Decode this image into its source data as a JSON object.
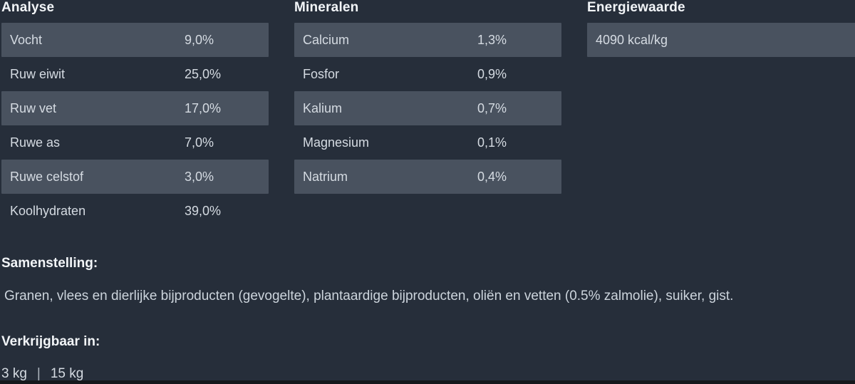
{
  "colors": {
    "background": "#262e3a",
    "row_highlight": "#49525f",
    "heading_text": "#f2f5f8",
    "body_text": "#d5dbe2",
    "bottom_bar": "#15181c"
  },
  "sections": {
    "analyse": {
      "title": "Analyse",
      "rows": [
        {
          "label": "Vocht",
          "value": "9,0%"
        },
        {
          "label": "Ruw eiwit",
          "value": "25,0%"
        },
        {
          "label": "Ruw vet",
          "value": "17,0%"
        },
        {
          "label": "Ruwe as",
          "value": "7,0%"
        },
        {
          "label": "Ruwe celstof",
          "value": "3,0%"
        },
        {
          "label": "Koolhydraten",
          "value": "39,0%"
        }
      ]
    },
    "mineralen": {
      "title": "Mineralen",
      "rows": [
        {
          "label": "Calcium",
          "value": "1,3%"
        },
        {
          "label": "Fosfor",
          "value": "0,9%"
        },
        {
          "label": "Kalium",
          "value": "0,7%"
        },
        {
          "label": "Magnesium",
          "value": "0,1%"
        },
        {
          "label": "Natrium",
          "value": "0,4%"
        }
      ]
    },
    "energiewaarde": {
      "title": "Energiewaarde",
      "value": "4090 kcal/kg"
    },
    "samenstelling": {
      "title": "Samenstelling:",
      "text": "Granen, vlees en dierlijke bijproducten (gevogelte), plantaardige bijproducten, oliën en vetten (0.5% zalmolie), suiker, gist."
    },
    "verkrijgbaar": {
      "title": "Verkrijgbaar in:",
      "sizes": [
        "3 kg",
        "15 kg"
      ],
      "separator": "|"
    }
  }
}
